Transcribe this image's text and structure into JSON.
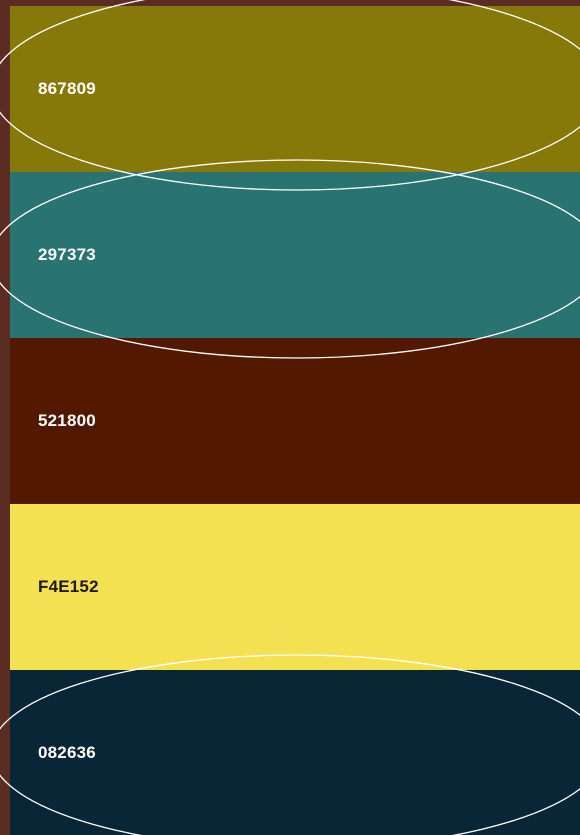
{
  "palette": {
    "swatches": [
      {
        "code": "867809",
        "color": "#867809",
        "text_color": "#ffffff"
      },
      {
        "code": "297373",
        "color": "#297373",
        "text_color": "#ffffff"
      },
      {
        "code": "521800",
        "color": "#521800",
        "text_color": "#ffffff"
      },
      {
        "code": "F4E152",
        "color": "#F4E152",
        "text_color": "#1a1a1a"
      },
      {
        "code": "082636",
        "color": "#082636",
        "text_color": "#ffffff"
      }
    ],
    "frame_color": "#5a2c22",
    "annotation_color": "#ffffff"
  }
}
